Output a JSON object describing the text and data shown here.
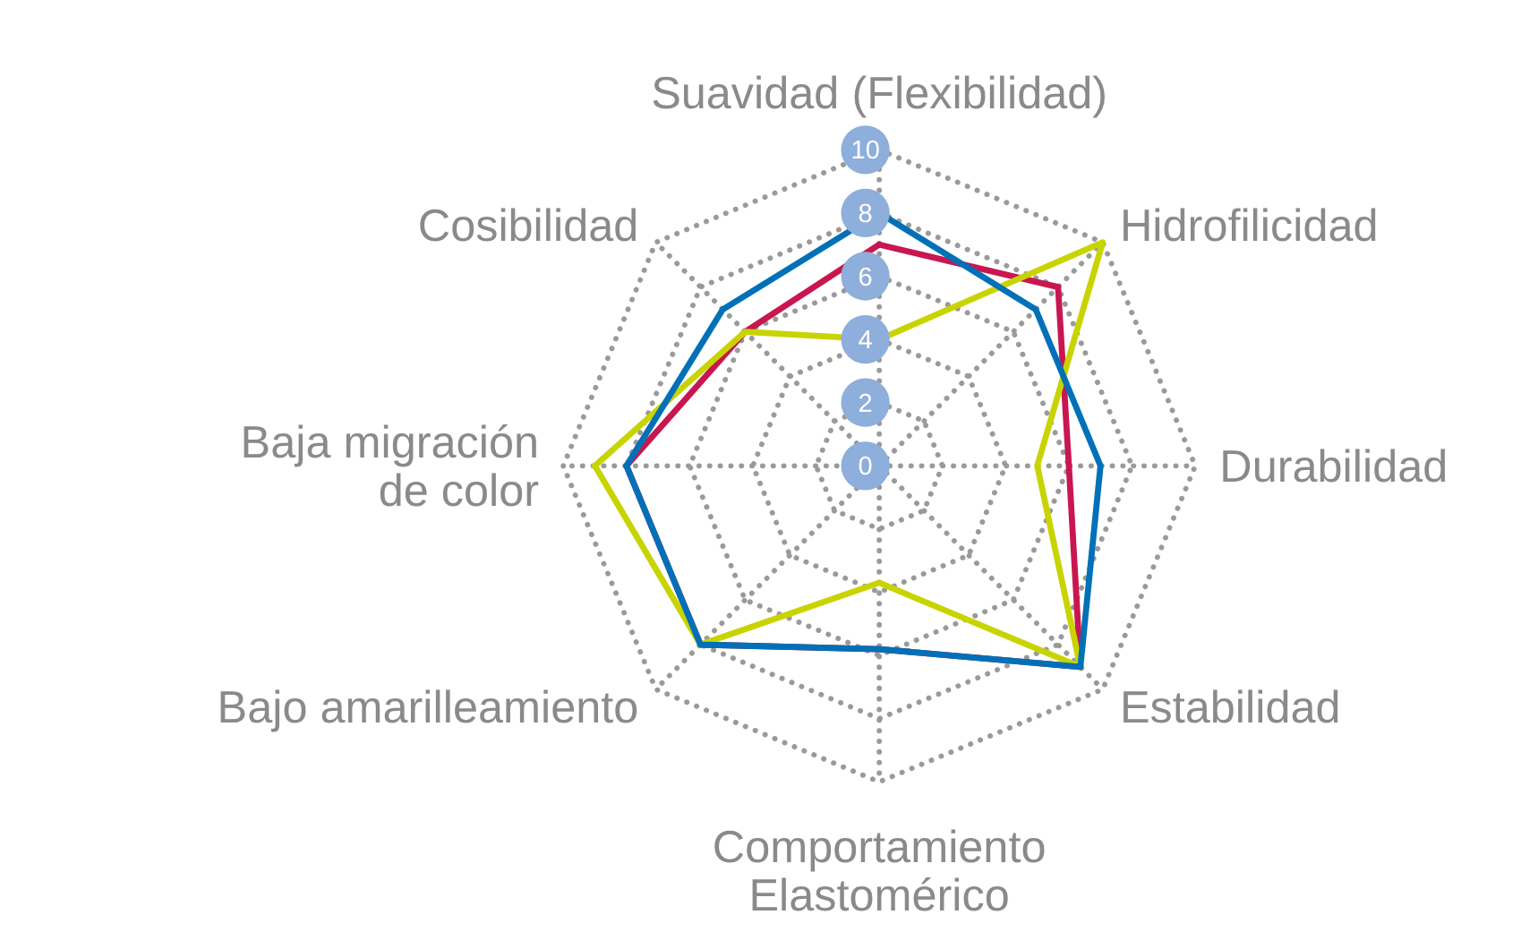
{
  "chart_data": {
    "type": "radar",
    "categories": [
      "Suavidad (Flexibilidad)",
      "Hidrofilicidad",
      "Durabilidad",
      "Estabilidad",
      "Comportamiento Elastomérico",
      "Bajo amarilleamiento",
      "Baja migración de color",
      "Cosibilidad"
    ],
    "series": [
      {
        "color": "#c8174f",
        "values": [
          7,
          8,
          6,
          9,
          5.8,
          8,
          8,
          6
        ]
      },
      {
        "color": "#c8d400",
        "values": [
          4,
          10,
          5,
          9,
          3.7,
          8,
          9,
          6
        ]
      },
      {
        "color": "#0070b8",
        "values": [
          8,
          7,
          7,
          9,
          5.8,
          8,
          8,
          7
        ]
      }
    ],
    "ylim": [
      0,
      10
    ],
    "yticks": [
      0,
      2,
      4,
      6,
      8,
      10
    ],
    "grid": true,
    "marker": "none",
    "line_style": "solid"
  }
}
